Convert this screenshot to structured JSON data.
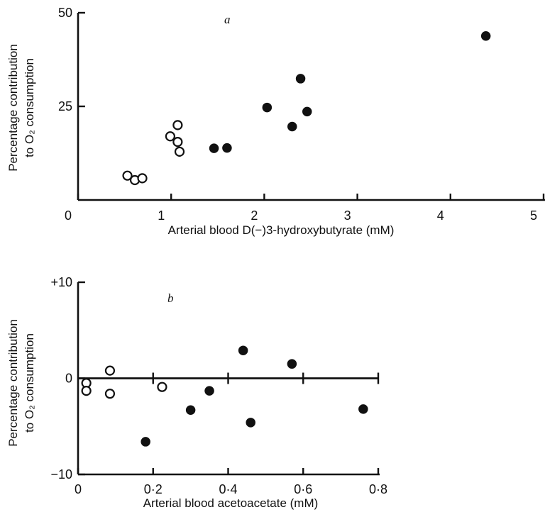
{
  "chart_data": [
    {
      "type": "scatter",
      "panel_label": "a",
      "xlabel": "Arterial blood D(−)3-hydroxybutyrate (mM)",
      "ylabel_line1": "Percentage contribution",
      "ylabel_line2": "to O₂ consumption",
      "xlim": [
        0,
        5
      ],
      "ylim": [
        0,
        50
      ],
      "x_ticks": [
        0,
        1,
        2,
        3,
        4,
        5
      ],
      "x_tick_labels": [
        "0",
        "1",
        "2",
        "3",
        "4",
        "5"
      ],
      "y_ticks": [
        25,
        50
      ],
      "y_tick_labels": [
        "25",
        "50"
      ],
      "grid": false,
      "series": [
        {
          "marker": "open",
          "points": [
            {
              "x": 0.53,
              "y": 6.5
            },
            {
              "x": 0.61,
              "y": 5.3
            },
            {
              "x": 0.69,
              "y": 5.8
            },
            {
              "x": 0.99,
              "y": 17.0
            },
            {
              "x": 1.07,
              "y": 20.0
            },
            {
              "x": 1.07,
              "y": 15.5
            },
            {
              "x": 1.09,
              "y": 12.9
            }
          ]
        },
        {
          "marker": "filled",
          "points": [
            {
              "x": 1.46,
              "y": 13.8
            },
            {
              "x": 1.6,
              "y": 13.9
            },
            {
              "x": 2.03,
              "y": 24.7
            },
            {
              "x": 2.3,
              "y": 19.6
            },
            {
              "x": 2.39,
              "y": 32.4
            },
            {
              "x": 2.46,
              "y": 23.6
            },
            {
              "x": 4.38,
              "y": 43.8
            }
          ]
        }
      ]
    },
    {
      "type": "scatter",
      "panel_label": "b",
      "xlabel": "Arterial blood acetoacetate (mM)",
      "ylabel_line1": "Percentage contribution",
      "ylabel_line2": "to O₂ consumption",
      "xlim": [
        0,
        0.8
      ],
      "ylim": [
        -10,
        10
      ],
      "x_ticks": [
        0,
        0.2,
        0.4,
        0.6,
        0.8
      ],
      "x_tick_labels": [
        "0",
        "0·2",
        "0·4",
        "0·6",
        "0·8"
      ],
      "y_ticks": [
        -10,
        0,
        10
      ],
      "y_tick_labels": [
        "−10",
        "0",
        "+10"
      ],
      "zero_line": true,
      "grid": false,
      "series": [
        {
          "marker": "open",
          "points": [
            {
              "x": 0.022,
              "y": -0.5
            },
            {
              "x": 0.022,
              "y": -1.3
            },
            {
              "x": 0.085,
              "y": 0.8
            },
            {
              "x": 0.085,
              "y": -1.6
            },
            {
              "x": 0.224,
              "y": -0.9
            }
          ]
        },
        {
          "marker": "filled",
          "points": [
            {
              "x": 0.18,
              "y": -6.6
            },
            {
              "x": 0.3,
              "y": -3.3
            },
            {
              "x": 0.35,
              "y": -1.3
            },
            {
              "x": 0.44,
              "y": 2.9
            },
            {
              "x": 0.46,
              "y": -4.6
            },
            {
              "x": 0.57,
              "y": 1.5
            },
            {
              "x": 0.76,
              "y": -3.2
            }
          ]
        }
      ]
    }
  ]
}
